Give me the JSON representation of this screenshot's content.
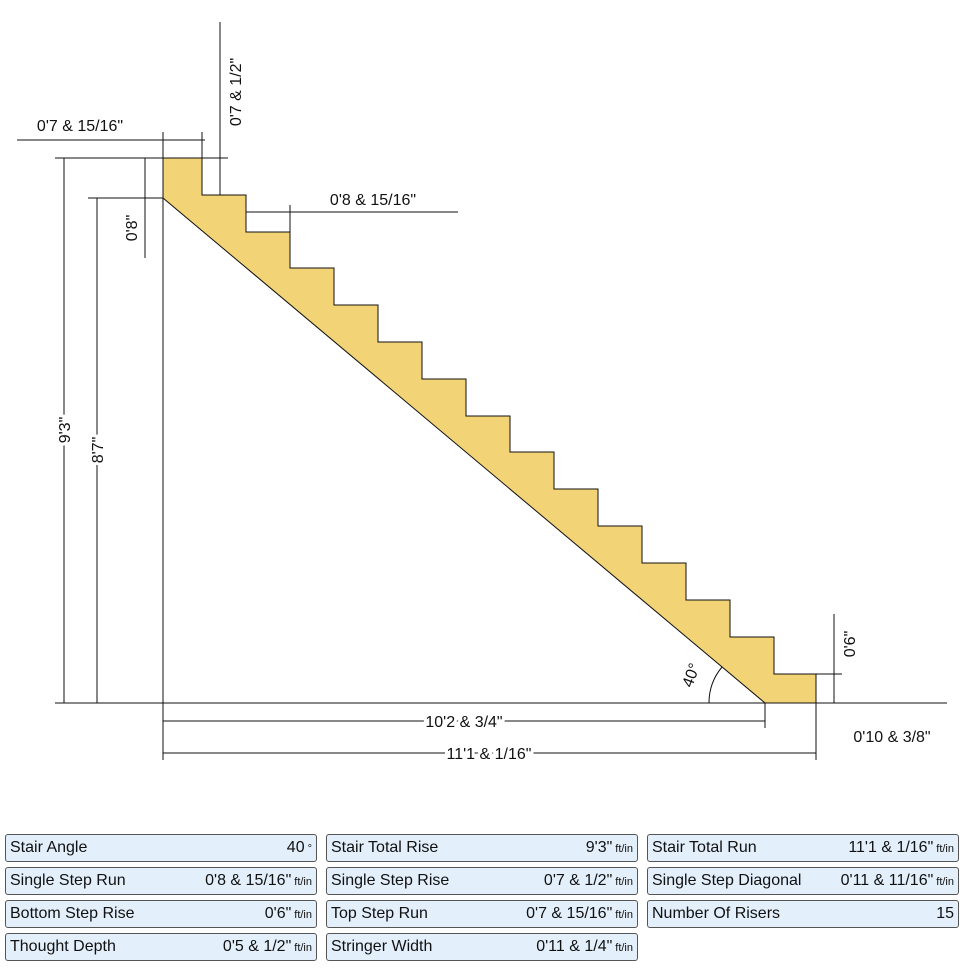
{
  "diagram": {
    "labels": {
      "top_step_run": "0'7 & 15/16\"",
      "step_rise": "0'7 & 1/2\"",
      "step_run": "0'8 & 15/16\"",
      "stringer_depth": "0'8\"",
      "total_rise": "9'3\"",
      "inner_rise": "8'7\"",
      "angle": "40°",
      "bottom_step_rise": "0'6\"",
      "inner_run": "10'2 & 3/4\"",
      "bottom_step_run": "0'10 & 3/8\"",
      "total_run": "11'1 & 1/16\""
    }
  },
  "results": {
    "rows": [
      [
        {
          "label": "Stair Angle",
          "value": "40",
          "unit": "°"
        },
        {
          "label": "Stair Total Rise",
          "value": "9'3\"",
          "unit": "ft/in"
        },
        {
          "label": "Stair Total Run",
          "value": "11'1 & 1/16\"",
          "unit": "ft/in"
        }
      ],
      [
        {
          "label": "Single Step Run",
          "value": "0'8 & 15/16\"",
          "unit": "ft/in"
        },
        {
          "label": "Single Step Rise",
          "value": "0'7 & 1/2\"",
          "unit": "ft/in"
        },
        {
          "label": "Single Step Diagonal",
          "value": "0'11 & 11/16\"",
          "unit": "ft/in"
        }
      ],
      [
        {
          "label": "Bottom Step Rise",
          "value": "0'6\"",
          "unit": "ft/in"
        },
        {
          "label": "Top Step Run",
          "value": "0'7 & 15/16\"",
          "unit": "ft/in"
        },
        {
          "label": "Number Of Risers",
          "value": "15"
        }
      ],
      [
        {
          "label": "Thought Depth",
          "value": "0'5 & 1/2\"",
          "unit": "ft/in"
        },
        {
          "label": "Stringer Width",
          "value": "0'11 & 1/4\"",
          "unit": "ft/in"
        }
      ]
    ]
  }
}
